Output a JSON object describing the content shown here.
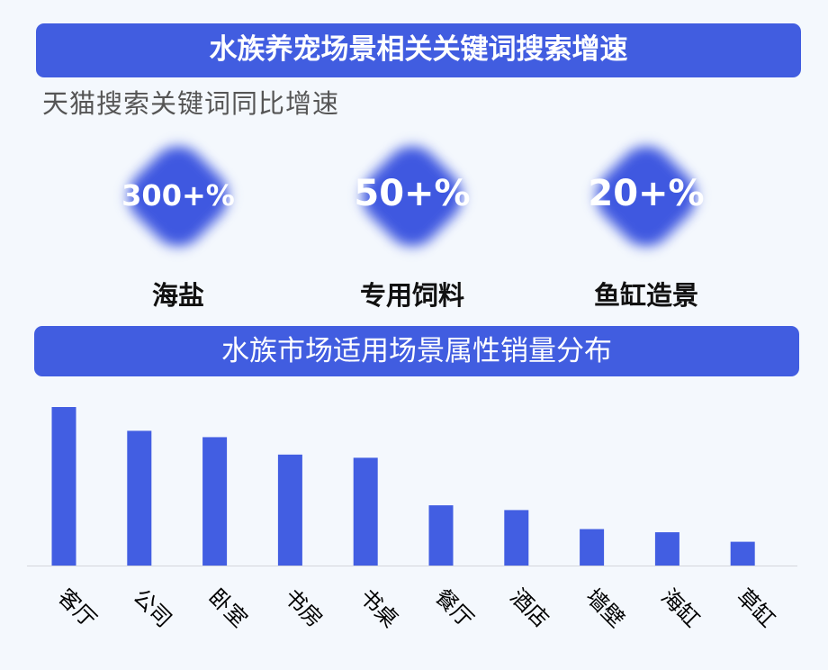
{
  "header": {
    "title": "水族养宠场景相关关键词搜索增速",
    "subtitle": "天猫搜索关键词同比增速"
  },
  "stats": [
    {
      "value": "300+%",
      "label": "海盐"
    },
    {
      "value": "50+%",
      "label": "专用饲料"
    },
    {
      "value": "20+%",
      "label": "鱼缸造景"
    }
  ],
  "section2": {
    "title": "水族市场适用场景属性销量分布"
  },
  "colors": {
    "accent": "#415de0",
    "bar": "#425ee2"
  },
  "chart_data": {
    "type": "bar",
    "title": "水族市场适用场景属性销量分布",
    "categories": [
      "客厅",
      "公司",
      "卧室",
      "书房",
      "书桌",
      "餐厅",
      "酒店",
      "墙壁",
      "海缸",
      "草缸"
    ],
    "values": [
      100,
      85,
      81,
      70,
      68,
      38,
      35,
      23,
      21,
      15
    ],
    "value_note": "relative (no axis shown)",
    "grid": false,
    "ylim": [
      0,
      100
    ]
  }
}
